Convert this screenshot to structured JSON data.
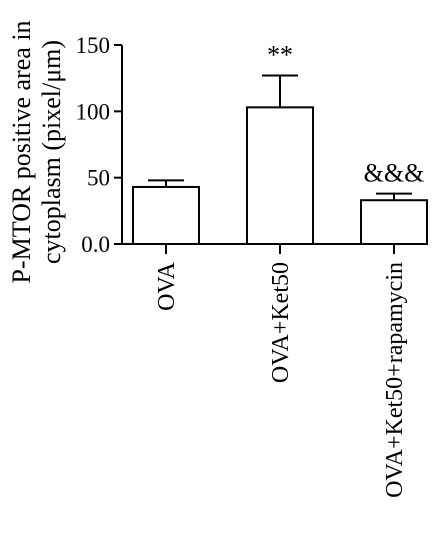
{
  "chart_data": {
    "type": "bar",
    "ylabel_line1": "P-MTOR positive area in",
    "ylabel_line2": "cytoplasm (pixel/μm)",
    "categories": [
      "OVA",
      "OVA+Ket50",
      "OVA+Ket50+rapamycin"
    ],
    "values": [
      43,
      103,
      33
    ],
    "errors": [
      5,
      24,
      5
    ],
    "annotations": [
      "",
      "**",
      "&&&"
    ],
    "yticks": [
      0,
      50,
      100,
      150
    ],
    "ytick_labels": [
      "0.0",
      "50",
      "100",
      "150"
    ],
    "ylim": [
      0,
      150
    ],
    "colors": {
      "bar_fill": "#ffffff",
      "stroke": "#000000"
    }
  }
}
